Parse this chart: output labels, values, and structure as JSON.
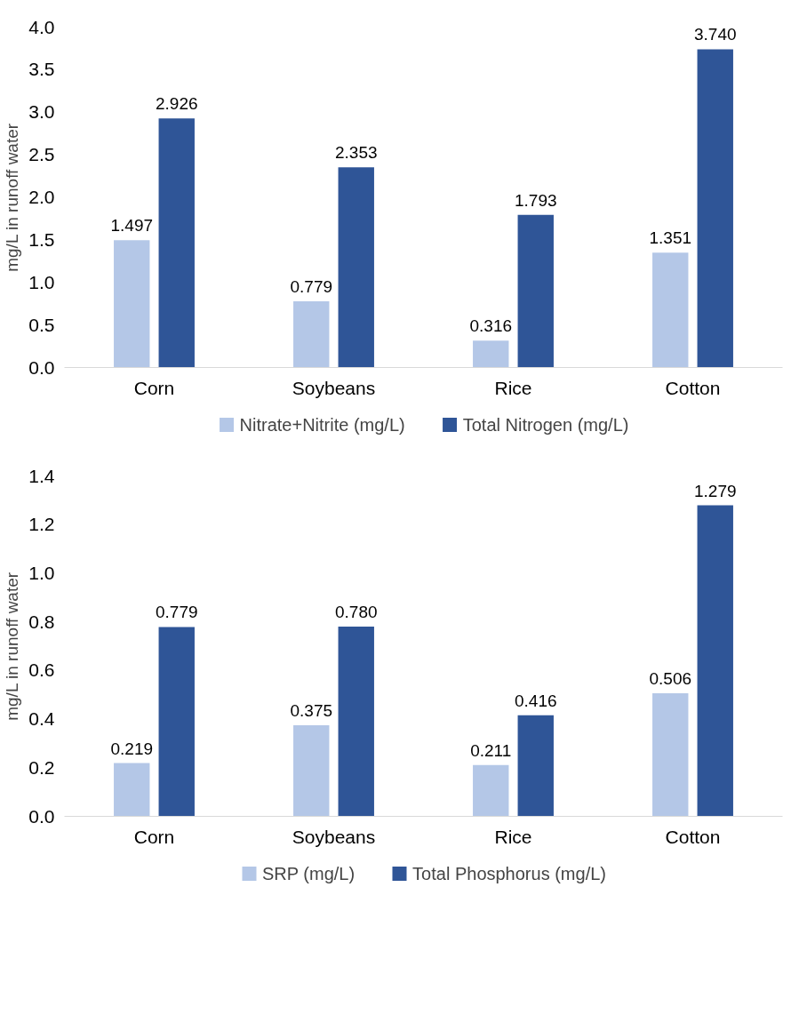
{
  "chart_data": [
    {
      "type": "bar",
      "ylabel": "mg/L in runoff water",
      "categories": [
        "Corn",
        "Soybeans",
        "Rice",
        "Cotton"
      ],
      "series": [
        {
          "name": "Nitrate+Nitrite (mg/L)",
          "color": "#b4c7e7",
          "values": [
            1.497,
            0.779,
            0.316,
            1.351
          ]
        },
        {
          "name": "Total Nitrogen (mg/L)",
          "color": "#2f5597",
          "values": [
            2.926,
            2.353,
            1.793,
            3.74
          ]
        }
      ],
      "ylim": [
        0,
        4
      ],
      "yticks": [
        {
          "value": 0,
          "label": "0.0"
        },
        {
          "value": 0.5,
          "label": "0.5"
        },
        {
          "value": 1,
          "label": "1.0"
        },
        {
          "value": 1.5,
          "label": "1.5"
        },
        {
          "value": 2,
          "label": "2.0"
        },
        {
          "value": 2.5,
          "label": "2.5"
        },
        {
          "value": 3,
          "label": "3.0"
        },
        {
          "value": 3.5,
          "label": "3.5"
        },
        {
          "value": 4,
          "label": "4.0"
        }
      ],
      "value_labels": [
        [
          "1.497",
          "0.779",
          "0.316",
          "1.351"
        ],
        [
          "2.926",
          "2.353",
          "1.793",
          "3.740"
        ]
      ],
      "grid": false,
      "legend": "bottom"
    },
    {
      "type": "bar",
      "ylabel": "mg/L in runoff water",
      "categories": [
        "Corn",
        "Soybeans",
        "Rice",
        "Cotton"
      ],
      "series": [
        {
          "name": "SRP (mg/L)",
          "color": "#b4c7e7",
          "values": [
            0.219,
            0.375,
            0.211,
            0.506
          ]
        },
        {
          "name": "Total Phosphorus (mg/L)",
          "color": "#2f5597",
          "values": [
            0.779,
            0.78,
            0.416,
            1.279
          ]
        }
      ],
      "ylim": [
        0,
        1.4
      ],
      "yticks": [
        {
          "value": 0,
          "label": "0.0"
        },
        {
          "value": 0.2,
          "label": "0.2"
        },
        {
          "value": 0.4,
          "label": "0.4"
        },
        {
          "value": 0.6,
          "label": "0.6"
        },
        {
          "value": 0.8,
          "label": "0.8"
        },
        {
          "value": 1.0,
          "label": "1.0"
        },
        {
          "value": 1.2,
          "label": "1.2"
        },
        {
          "value": 1.4,
          "label": "1.4"
        }
      ],
      "value_labels": [
        [
          "0.219",
          "0.375",
          "0.211",
          "0.506"
        ],
        [
          "0.779",
          "0.780",
          "0.416",
          "1.279"
        ]
      ],
      "grid": false,
      "legend": "bottom"
    }
  ]
}
